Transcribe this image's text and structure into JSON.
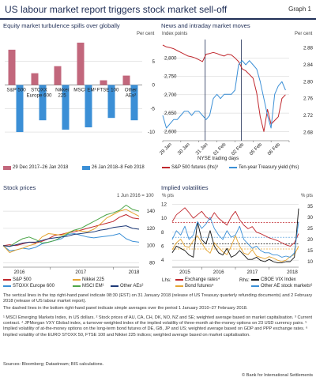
{
  "header": {
    "title": "US labour market report triggers stock market sell-off",
    "graph_no": "Graph 1"
  },
  "panel1": {
    "title": "Equity market turbulence spills over globally",
    "unit": "Per cent"
  },
  "panel2": {
    "title": "News and intraday market moves",
    "unit_left": "Index points",
    "unit_right": "Per cent",
    "xlabel": "NYSE trading days"
  },
  "panel3": {
    "title": "Stock prices",
    "unit": "1 Jun 2016 = 100"
  },
  "panel4": {
    "title": "Implied volatilities",
    "unit_left": "% pts",
    "unit_right": "% pts",
    "lhs_label": "Lhs:",
    "rhs_label": "Rhs:"
  },
  "notes": {
    "n1": "The vertical lines in the top right-hand panel indicate 08:30 (EST) on 31 January 2018 (release of US Treasury quarterly refunding documents) and 2 February 2018 (release of US labour market report).",
    "n2": "The dashed lines in the bottom right-hand panel indicate simple averages over the period 1 January 2010–27 February 2018.",
    "n3": "¹ MSCI Emerging Markets Index, in US dollars.  ² Stock prices of AU, CA, CH, DK, NO, NZ and SE; weighted average based on market capitalisation.  ³ Current contract.  ⁴ JPMorgan VXY Global index, a turnover-weighted index of the implied volatility of three-month at-the-money options on 23 USD currency pairs.  ⁵ Implied volatility of at-the-money options on the long-term bond futures of DE, GB, JP and US; weighted average based on GDP and PPP exchange rates.  ⁶ Implied volatility of the EURO STOXX 50, FTSE 100 and Nikkei 225 indices; weighted average based on market capitalisation.",
    "sources": "Sources: Bloomberg; Datastream; BIS calculations.",
    "copyright": "© Bank for International Settlements"
  },
  "colors": {
    "pink": "#c2677c",
    "blue": "#3b8fd6",
    "red": "#c0272d",
    "orange": "#e5a532",
    "navy": "#1e3a78",
    "green": "#4ea64a",
    "black": "#111111",
    "grid": "#cfcfcf",
    "vline": "#1f2e56"
  },
  "chart_data": [
    {
      "type": "bar",
      "categories": [
        "S&P 500",
        "STOXX Europe 600",
        "Nikkei 225",
        "MSCI EM¹",
        "FTSE 100",
        "Other AEs²"
      ],
      "category_lines": [
        [
          "S&P 500"
        ],
        [
          "STOXX",
          "Europe 600"
        ],
        [
          "Nikkei",
          "225"
        ],
        [
          "MSCI EM¹"
        ],
        [
          "FTSE 100"
        ],
        [
          "Other",
          "AEs²"
        ]
      ],
      "series": [
        {
          "name": "29 Dec 2017–26 Jan 2018",
          "values": [
            7.5,
            2.5,
            4.0,
            9.0,
            1.0,
            2.0
          ]
        },
        {
          "name": "26 Jan 2018–8 Feb 2018",
          "values": [
            -10.0,
            -7.5,
            -9.5,
            -9.0,
            -7.0,
            -7.5
          ]
        }
      ],
      "yticks": [
        5,
        0,
        -5,
        -10
      ],
      "ylim": [
        -11,
        10
      ],
      "ylabel": "Per cent",
      "legend": "bottom"
    },
    {
      "type": "line",
      "x_ticks": [
        "29 Jan",
        "30 Jan",
        "31 Jan",
        "01 Feb",
        "02 Feb",
        "05 Feb",
        "06 Feb"
      ],
      "xlabel": "NYSE trading days",
      "left_yticks": [
        2800,
        2750,
        2700,
        2650,
        2600
      ],
      "left_ylim": [
        2575,
        2850
      ],
      "right_yticks": [
        2.88,
        2.84,
        2.8,
        2.76,
        2.72,
        2.68
      ],
      "right_ylim": [
        2.66,
        2.9
      ],
      "vlines_days": [
        2.35,
        4.35
      ],
      "series": [
        {
          "name": "S&P 500 futures (lhs)³",
          "axis": "left",
          "x": [
            0.0,
            0.2,
            0.4,
            0.6,
            0.8,
            1.0,
            1.2,
            1.4,
            1.6,
            1.8,
            2.0,
            2.2,
            2.4,
            2.6,
            2.8,
            3.0,
            3.2,
            3.4,
            3.6,
            3.8,
            4.0,
            4.2,
            4.4,
            4.6,
            4.8,
            5.0,
            5.2,
            5.4,
            5.6,
            5.8,
            6.0,
            6.2,
            6.4,
            6.6,
            6.8
          ],
          "y": [
            2835,
            2830,
            2828,
            2825,
            2820,
            2815,
            2810,
            2805,
            2803,
            2800,
            2795,
            2790,
            2810,
            2812,
            2815,
            2812,
            2808,
            2805,
            2810,
            2808,
            2800,
            2790,
            2770,
            2765,
            2755,
            2745,
            2705,
            2640,
            2600,
            2660,
            2620,
            2630,
            2640,
            2690,
            2700
          ]
        },
        {
          "name": "Ten-year Treasury yield (rhs)",
          "axis": "right",
          "x": [
            0.0,
            0.2,
            0.4,
            0.6,
            0.8,
            1.0,
            1.2,
            1.4,
            1.6,
            1.8,
            2.0,
            2.2,
            2.4,
            2.6,
            2.8,
            3.0,
            3.2,
            3.4,
            3.6,
            3.8,
            4.0,
            4.2,
            4.4,
            4.6,
            4.8,
            5.0,
            5.2,
            5.4,
            5.6,
            5.8,
            6.0,
            6.2,
            6.4,
            6.6,
            6.8
          ],
          "y": [
            2.72,
            2.69,
            2.7,
            2.71,
            2.71,
            2.72,
            2.73,
            2.73,
            2.72,
            2.73,
            2.73,
            2.72,
            2.71,
            2.72,
            2.76,
            2.77,
            2.76,
            2.77,
            2.77,
            2.77,
            2.78,
            2.84,
            2.85,
            2.84,
            2.85,
            2.84,
            2.83,
            2.8,
            2.76,
            2.72,
            2.69,
            2.77,
            2.79,
            2.8,
            2.78
          ]
        }
      ],
      "legend": "bottom"
    },
    {
      "type": "line",
      "x_ticks": [
        "2016",
        "2017",
        "2018"
      ],
      "yticks": [
        140,
        120,
        100,
        80
      ],
      "ylim": [
        75,
        152
      ],
      "xlim": [
        0,
        21
      ],
      "series": [
        {
          "name": "S&P 500",
          "color": "red",
          "x": [
            0,
            1,
            2,
            3,
            4,
            5,
            6,
            7,
            8,
            9,
            10,
            11,
            12,
            13,
            14,
            15,
            16,
            17,
            18,
            19,
            20,
            21
          ],
          "y": [
            100,
            101,
            100,
            102,
            104,
            103,
            105,
            108,
            112,
            113,
            115,
            116,
            118,
            120,
            122,
            124,
            126,
            128,
            133,
            136,
            132,
            131
          ]
        },
        {
          "name": "STOXX Europe 600",
          "color": "blue",
          "x": [
            0,
            1,
            2,
            3,
            4,
            5,
            6,
            7,
            8,
            9,
            10,
            11,
            12,
            13,
            14,
            15,
            16,
            17,
            18,
            19,
            20,
            21
          ],
          "y": [
            100,
            94,
            95,
            97,
            96,
            98,
            102,
            104,
            106,
            108,
            113,
            114,
            112,
            110,
            109,
            110,
            111,
            112,
            114,
            108,
            105,
            104
          ]
        },
        {
          "name": "Nikkei 225",
          "color": "orange",
          "x": [
            0,
            1,
            2,
            3,
            4,
            5,
            6,
            7,
            8,
            9,
            10,
            11,
            12,
            13,
            14,
            15,
            16,
            17,
            18,
            19,
            20,
            21
          ],
          "y": [
            100,
            92,
            95,
            97,
            100,
            102,
            110,
            114,
            113,
            112,
            115,
            118,
            117,
            116,
            119,
            125,
            132,
            136,
            140,
            142,
            138,
            134
          ]
        },
        {
          "name": "MSCI EM¹",
          "color": "green",
          "x": [
            0,
            1,
            2,
            3,
            4,
            5,
            6,
            7,
            8,
            9,
            10,
            11,
            12,
            13,
            14,
            15,
            16,
            17,
            18,
            19,
            20,
            21
          ],
          "y": [
            100,
            99,
            104,
            108,
            110,
            107,
            103,
            104,
            106,
            110,
            114,
            118,
            120,
            124,
            128,
            132,
            136,
            138,
            141,
            147,
            142,
            140
          ]
        },
        {
          "name": "Other AEs²",
          "color": "navy",
          "x": [
            0,
            1,
            2,
            3,
            4,
            5,
            6,
            7,
            8,
            9,
            10,
            11,
            12,
            13,
            14,
            15,
            16,
            17,
            18,
            19,
            20,
            21
          ],
          "y": [
            100,
            99,
            101,
            103,
            104,
            104,
            106,
            108,
            109,
            110,
            111,
            113,
            114,
            115,
            116,
            118,
            119,
            121,
            122,
            123,
            120,
            119
          ]
        }
      ],
      "legend": "bottom"
    },
    {
      "type": "line",
      "x_ticks": [
        "2015",
        "2016",
        "2017",
        "2018"
      ],
      "left_yticks": [
        12,
        10,
        8,
        6,
        4
      ],
      "left_ylim": [
        3,
        12.5
      ],
      "right_yticks": [
        35,
        30,
        25,
        20,
        15,
        10
      ],
      "right_ylim": [
        7.5,
        37.5
      ],
      "series": [
        {
          "name": "Exchange rates⁴",
          "axis": "left",
          "color": "red",
          "dashed_avg": 9.4,
          "x": [
            0,
            1,
            2,
            3,
            4,
            5,
            6,
            7,
            8,
            9,
            10,
            11,
            12,
            13,
            14,
            15,
            16,
            17,
            18,
            19,
            20,
            21,
            22,
            23,
            24,
            25,
            26,
            27,
            28,
            29,
            30
          ],
          "y": [
            9.5,
            10.5,
            11.0,
            11.5,
            10.8,
            10.0,
            10.5,
            11.0,
            10.2,
            9.8,
            10.8,
            10.0,
            9.5,
            9.0,
            10.2,
            11.0,
            9.8,
            9.0,
            8.5,
            8.8,
            8.0,
            7.8,
            7.5,
            7.2,
            7.0,
            6.8,
            6.5,
            6.2,
            6.0,
            6.5,
            7.8
          ]
        },
        {
          "name": "Bond futures⁵",
          "axis": "left",
          "color": "orange",
          "dashed_avg": 5.6,
          "x": [
            0,
            1,
            2,
            3,
            4,
            5,
            6,
            7,
            8,
            9,
            10,
            11,
            12,
            13,
            14,
            15,
            16,
            17,
            18,
            19,
            20,
            21,
            22,
            23,
            24,
            25,
            26,
            27,
            28,
            29,
            30
          ],
          "y": [
            5.5,
            6.5,
            7.0,
            6.0,
            5.8,
            6.8,
            7.5,
            6.5,
            5.5,
            5.0,
            6.5,
            5.8,
            5.2,
            4.8,
            6.0,
            7.5,
            6.0,
            5.0,
            4.8,
            5.5,
            4.6,
            4.4,
            4.2,
            4.5,
            4.3,
            4.0,
            3.8,
            4.0,
            4.5,
            4.8,
            6.0
          ]
        },
        {
          "name": "CBOE VIX Index",
          "axis": "right",
          "color": "black",
          "dashed_avg": 18.0,
          "x": [
            0,
            1,
            2,
            3,
            4,
            5,
            6,
            7,
            8,
            9,
            10,
            11,
            12,
            13,
            14,
            15,
            16,
            17,
            18,
            19,
            20,
            21,
            22,
            23,
            24,
            25,
            26,
            27,
            28,
            29,
            30
          ],
          "y": [
            14,
            17,
            16,
            15,
            13,
            12,
            28,
            20,
            18,
            24,
            17,
            14,
            13,
            16,
            12,
            13,
            15,
            13,
            11,
            11,
            12,
            10.5,
            10,
            11,
            10,
            9.5,
            9.5,
            10,
            10,
            12,
            34
          ]
        },
        {
          "name": "Other AE stock markets⁶",
          "axis": "right",
          "color": "blue",
          "dashed_avg": 21.0,
          "x": [
            0,
            1,
            2,
            3,
            4,
            5,
            6,
            7,
            8,
            9,
            10,
            11,
            12,
            13,
            14,
            15,
            16,
            17,
            18,
            19,
            20,
            21,
            22,
            23,
            24,
            25,
            26,
            27,
            28,
            29,
            30
          ],
          "y": [
            20,
            24,
            22,
            26,
            20,
            22,
            28,
            25,
            27,
            30,
            25,
            22,
            20,
            24,
            21,
            22,
            26,
            20,
            18,
            16,
            17,
            15,
            14,
            14,
            13,
            13,
            12,
            12.5,
            12,
            14,
            28
          ]
        }
      ],
      "legend": "bottom"
    }
  ]
}
